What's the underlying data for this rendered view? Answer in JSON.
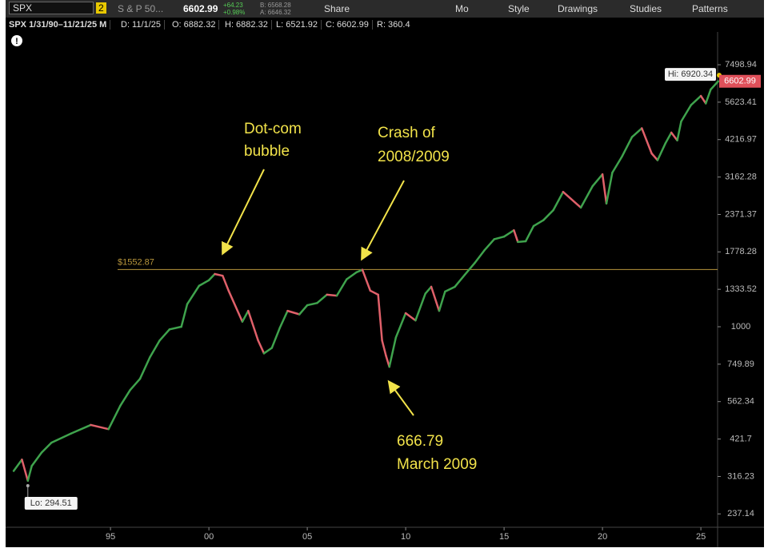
{
  "toolbar": {
    "symbol": "SPX",
    "badge": "2",
    "description": "S & P 50...",
    "last": "6602.99",
    "change": "+64.23",
    "change_pct": "+0.98%",
    "bid": "B: 6568.28",
    "ask": "A: 6646.32",
    "share": "Share",
    "period": "Mo",
    "style": "Style",
    "drawings": "Drawings",
    "studies": "Studies",
    "patterns": "Patterns"
  },
  "info_bar": {
    "range": "SPX 1/31/90–11/21/25 M",
    "date": "D: 11/1/25",
    "open": "O: 6882.32",
    "high": "H: 6882.32",
    "low": "L: 6521.92",
    "close": "C: 6602.99",
    "range_value": "R: 360.4"
  },
  "chart_data": {
    "type": "line",
    "log_scale": true,
    "x": [
      1990.08,
      1990.5,
      1990.8,
      1991,
      1991.5,
      1992,
      1993,
      1994,
      1994.9,
      1995.5,
      1996,
      1996.5,
      1997,
      1997.5,
      1998,
      1998.6,
      1998.9,
      1999.5,
      2000,
      2000.3,
      2000.7,
      2001,
      2001.7,
      2002,
      2002.5,
      2002.8,
      2003.2,
      2003.6,
      2004,
      2004.6,
      2005,
      2005.5,
      2006,
      2006.5,
      2007,
      2007.5,
      2007.8,
      2008.2,
      2008.6,
      2008.8,
      2009.0,
      2009.17,
      2009.5,
      2010,
      2010.5,
      2011,
      2011.3,
      2011.7,
      2012,
      2012.5,
      2013,
      2013.5,
      2014,
      2014.5,
      2015,
      2015.5,
      2015.7,
      2016.1,
      2016.5,
      2017,
      2017.5,
      2018,
      2018.9,
      2019.5,
      2020,
      2020.2,
      2020.5,
      2021,
      2021.5,
      2022,
      2022.5,
      2022.8,
      2023.2,
      2023.5,
      2023.8,
      2024,
      2024.5,
      2025,
      2025.25,
      2025.5,
      2025.88
    ],
    "series": [
      {
        "name": "SPX",
        "color": "#3fa34d",
        "down_color": "#e0606a",
        "values": [
          330,
          360,
          306,
          343,
          380,
          410,
          440,
          470,
          455,
          545,
          615,
          670,
          790,
          900,
          980,
          1000,
          1190,
          1370,
          1430,
          1500,
          1480,
          1320,
          1040,
          1130,
          900,
          815,
          850,
          990,
          1130,
          1100,
          1180,
          1200,
          1280,
          1270,
          1440,
          1520,
          1550,
          1320,
          1280,
          900,
          800,
          735,
          920,
          1110,
          1050,
          1290,
          1360,
          1130,
          1310,
          1360,
          1490,
          1630,
          1800,
          1960,
          2000,
          2100,
          1920,
          1930,
          2170,
          2270,
          2450,
          2820,
          2500,
          2950,
          3230,
          2580,
          3270,
          3710,
          4300,
          4600,
          3790,
          3600,
          4100,
          4450,
          4190,
          4850,
          5500,
          5900,
          5570,
          6200,
          6603
        ]
      }
    ],
    "xlim": [
      1989.67,
      2025.85
    ],
    "xticks": [
      {
        "value": 1995,
        "label": "95"
      },
      {
        "value": 2000,
        "label": "00"
      },
      {
        "value": 2005,
        "label": "05"
      },
      {
        "value": 2010,
        "label": "10"
      },
      {
        "value": 2015,
        "label": "15"
      },
      {
        "value": 2020,
        "label": "20"
      },
      {
        "value": 2025,
        "label": "25"
      }
    ],
    "ylim": [
      214,
      10260
    ],
    "yticks": [
      237.14,
      316.23,
      421.7,
      562.34,
      749.89,
      1000,
      1333.52,
      1778.28,
      2371.37,
      3162.28,
      4216.97,
      5623.41,
      7498.94
    ],
    "hline": {
      "value": 1552.87,
      "label": "$1552.87",
      "color": "#b8963c"
    },
    "high": {
      "value": 6920.34,
      "label": "Hi: 6920.34"
    },
    "low": {
      "value": 294.51,
      "label": "Lo: 294.51"
    },
    "last_price": 6602.99,
    "annotations": [
      {
        "lines": [
          "Dot-com",
          "bubble"
        ]
      },
      {
        "lines": [
          "Crash of",
          "2008/2009"
        ]
      },
      {
        "lines": [
          "666.79",
          "March 2009"
        ]
      }
    ]
  }
}
